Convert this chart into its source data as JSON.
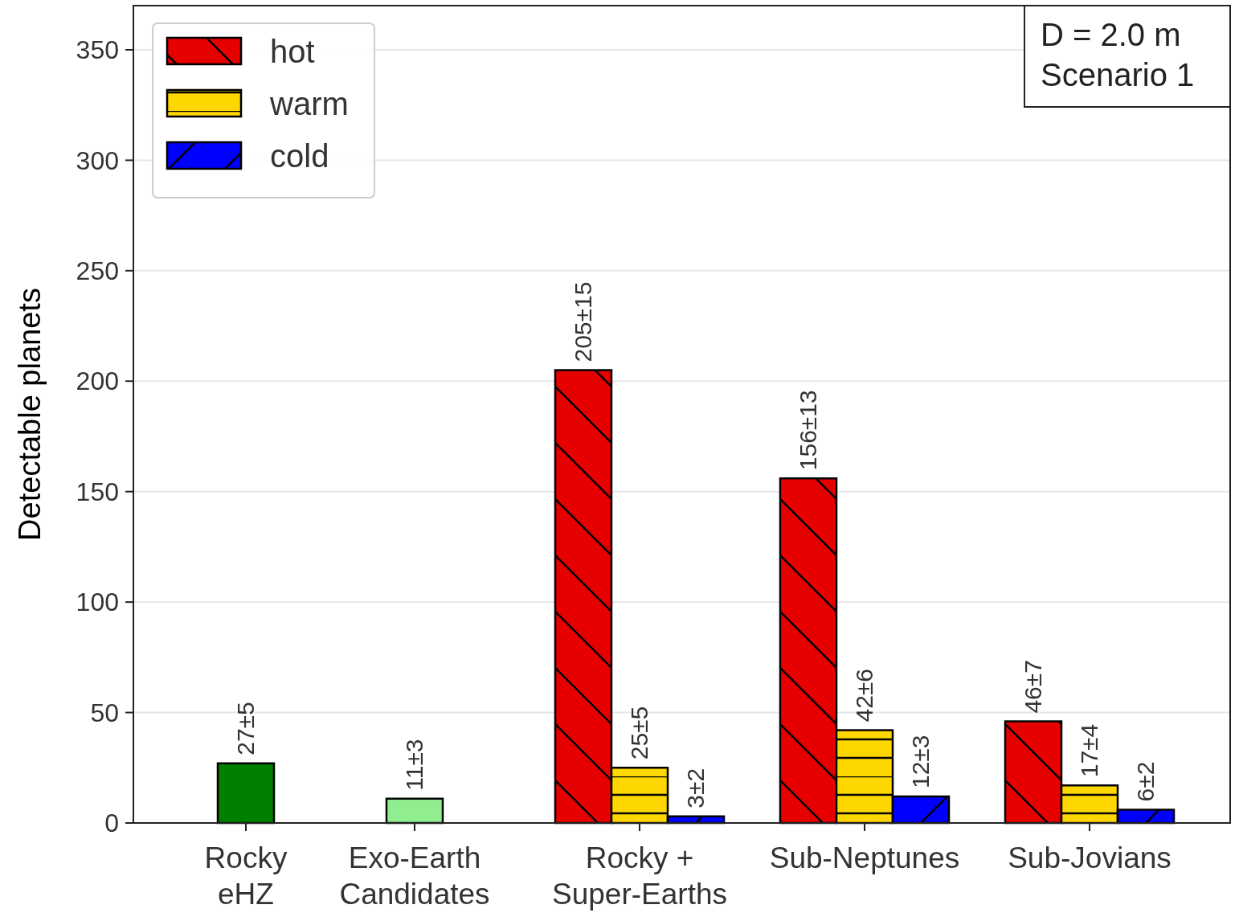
{
  "chart_data": {
    "type": "bar",
    "ylabel": "Detectable planets",
    "categories": [
      "Rocky\neHZ",
      "Exo-Earth\nCandidates",
      "Rocky +\nSuper-Earths",
      "Sub-Neptunes",
      "Sub-Jovians"
    ],
    "series": [
      {
        "colors": [
          "#008000",
          "#90ee90",
          null,
          null,
          null
        ],
        "values": [
          27,
          11,
          null,
          null,
          null
        ],
        "value_labels": [
          "27±5",
          "11±3",
          null,
          null,
          null
        ]
      },
      {
        "name": "hot",
        "color": "#e60000",
        "values": [
          null,
          null,
          205,
          156,
          46
        ],
        "value_labels": [
          null,
          null,
          "205±15",
          "156±13",
          "46±7"
        ]
      },
      {
        "name": "warm",
        "color": "#ffd700",
        "values": [
          null,
          null,
          25,
          42,
          17
        ],
        "value_labels": [
          null,
          null,
          "25±5",
          "42±6",
          "17±4"
        ]
      },
      {
        "name": "cold",
        "color": "#0000ff",
        "values": [
          null,
          null,
          3,
          12,
          6
        ],
        "value_labels": [
          null,
          null,
          "3±2",
          "12±3",
          "6±2"
        ]
      }
    ],
    "ylim": [
      0,
      370
    ],
    "yticks": [
      0,
      50,
      100,
      150,
      200,
      250,
      300,
      350
    ],
    "grid": "y",
    "legend": "top left",
    "annotations": [
      "D = 2.0 m",
      "Scenario 1"
    ]
  }
}
